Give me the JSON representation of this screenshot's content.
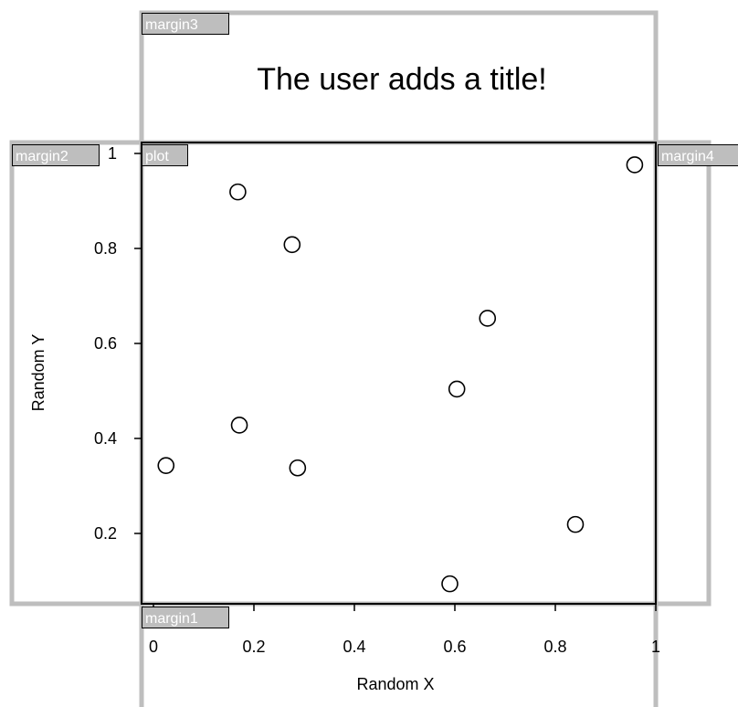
{
  "chart_data": {
    "type": "scatter",
    "title": "The user adds a title!",
    "xlabel": "Random X",
    "ylabel": "Random Y",
    "xlim": [
      0,
      1
    ],
    "ylim": [
      0.09,
      1
    ],
    "x_ticks": [
      {
        "value": 0,
        "label": "0"
      },
      {
        "value": 0.2,
        "label": "0.2"
      },
      {
        "value": 0.4,
        "label": "0.4"
      },
      {
        "value": 0.6,
        "label": "0.6"
      },
      {
        "value": 0.8,
        "label": "0.8"
      },
      {
        "value": 1,
        "label": "1"
      }
    ],
    "y_ticks": [
      {
        "value": 0.2,
        "label": "0.2"
      },
      {
        "value": 0.4,
        "label": "0.4"
      },
      {
        "value": 0.6,
        "label": "0.6"
      },
      {
        "value": 0.8,
        "label": "0.8"
      },
      {
        "value": 1,
        "label": "1"
      }
    ],
    "points": [
      {
        "x": 0.025,
        "y": 0.343
      },
      {
        "x": 0.168,
        "y": 0.919
      },
      {
        "x": 0.171,
        "y": 0.428
      },
      {
        "x": 0.276,
        "y": 0.808
      },
      {
        "x": 0.287,
        "y": 0.338
      },
      {
        "x": 0.59,
        "y": 0.094
      },
      {
        "x": 0.604,
        "y": 0.504
      },
      {
        "x": 0.665,
        "y": 0.653
      },
      {
        "x": 0.84,
        "y": 0.219
      },
      {
        "x": 0.958,
        "y": 0.976
      }
    ],
    "grid": false,
    "marker": "open-circle",
    "region_labels": [
      "margin1",
      "margin2",
      "margin3",
      "margin4",
      "plot"
    ]
  }
}
